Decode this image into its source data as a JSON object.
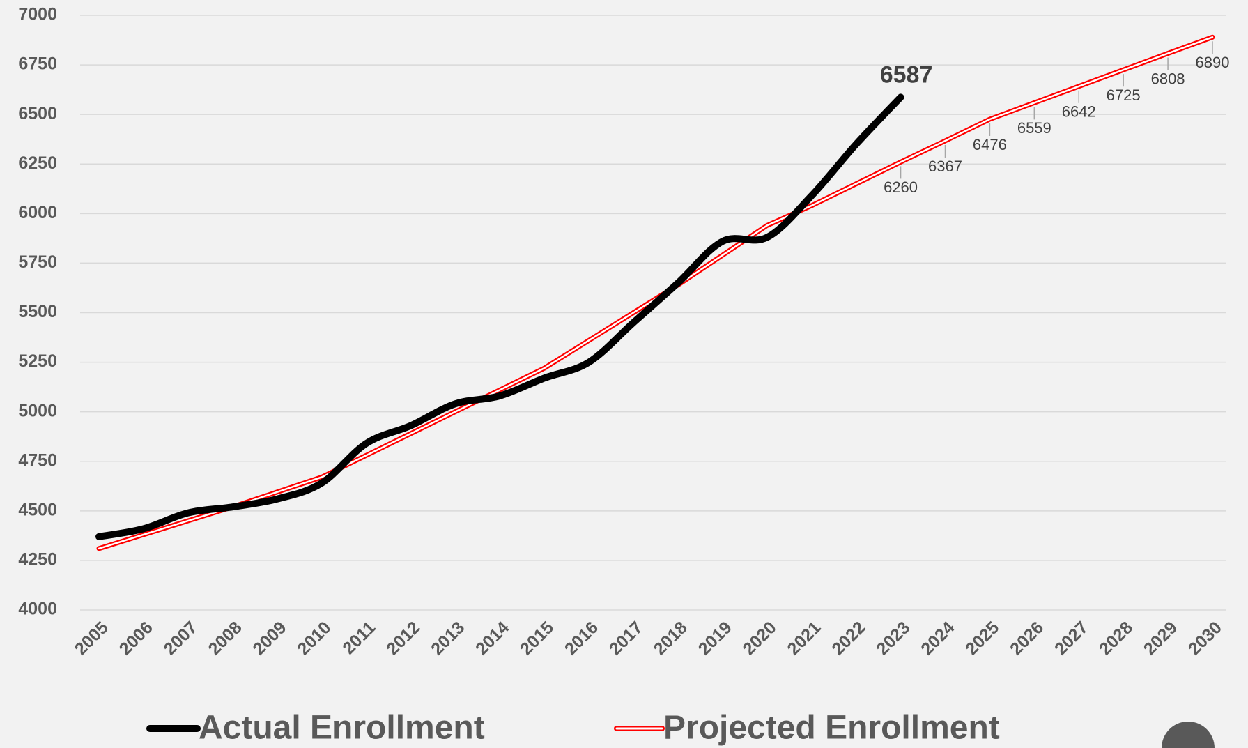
{
  "chart_data": {
    "type": "line",
    "categories": [
      "2005",
      "2006",
      "2007",
      "2008",
      "2009",
      "2010",
      "2011",
      "2012",
      "2013",
      "2014",
      "2015",
      "2016",
      "2017",
      "2018",
      "2019",
      "2020",
      "2021",
      "2022",
      "2023",
      "2024",
      "2025",
      "2026",
      "2027",
      "2028",
      "2029",
      "2030"
    ],
    "series": [
      {
        "name": "Actual Enrollment",
        "color": "#000000",
        "smooth": true,
        "label_from": "2023",
        "values": [
          4370,
          4410,
          4490,
          4520,
          4560,
          4640,
          4840,
          4930,
          5040,
          5080,
          5170,
          5250,
          5450,
          5650,
          5860,
          5880,
          6090,
          6350,
          6587,
          null,
          null,
          null,
          null,
          null,
          null,
          null
        ]
      },
      {
        "name": "Projected Enrollment",
        "color": "#ff0000",
        "smooth": false,
        "label_from": "2023",
        "values": [
          4310,
          4380,
          4450,
          4520,
          4595,
          4670,
          4780,
          4890,
          5000,
          5110,
          5220,
          5360,
          5500,
          5640,
          5790,
          5940,
          6040,
          6150,
          6260,
          6367,
          6476,
          6559,
          6642,
          6725,
          6808,
          6890
        ]
      }
    ],
    "ylim": [
      4000,
      7000
    ],
    "yticks": [
      4000,
      4250,
      4500,
      4750,
      5000,
      5250,
      5500,
      5750,
      6000,
      6250,
      6500,
      6750,
      7000
    ],
    "grid": true
  }
}
